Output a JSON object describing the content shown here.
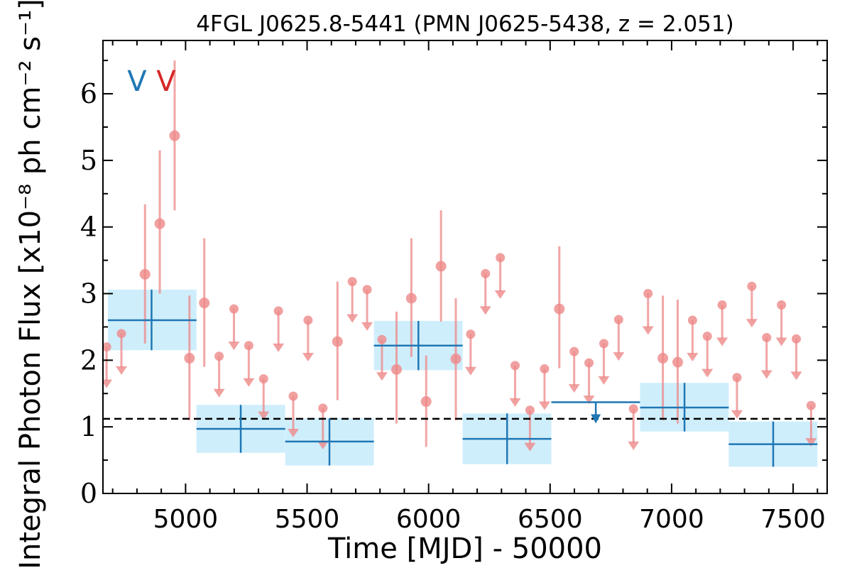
{
  "chart_data": {
    "type": "scatter",
    "title": "4FGL J0625.8-5441 (PMN J0625-5438, z = 2.051)",
    "xlabel": "Time [MJD] - 50000",
    "ylabel": "Integral Photon Flux [x10⁻⁸ ph cm⁻² s⁻¹]",
    "xlim": [
      4660,
      7640
    ],
    "ylim": [
      0,
      6.8
    ],
    "xticks": [
      5000,
      5500,
      6000,
      6500,
      7000,
      7500
    ],
    "yticks": [
      0,
      1,
      2,
      3,
      4,
      5,
      6
    ],
    "grid": false,
    "dashed_line": 1.12,
    "markers": [
      {
        "label": "V",
        "x": 4800,
        "color": "#1f77b4"
      },
      {
        "label": "V",
        "x": 4920,
        "color": "#d62728"
      }
    ],
    "colors": {
      "long_bins": "#1f77b4",
      "long_bin_band": "#cfeefc",
      "short_bins": "#ee8888",
      "dashed_line": "#000000"
    },
    "series": [
      {
        "type": "binned_errorbar",
        "color": "#1f77b4",
        "points": [
          {
            "x": 4860,
            "xlo": 4680,
            "xhi": 5045,
            "y": 2.6,
            "ylo": 2.15,
            "yhi": 3.06
          },
          {
            "x": 5227,
            "xlo": 5045,
            "xhi": 5410,
            "y": 0.97,
            "ylo": 0.61,
            "yhi": 1.33
          },
          {
            "x": 5592,
            "xlo": 5410,
            "xhi": 5775,
            "y": 0.78,
            "ylo": 0.42,
            "yhi": 1.13
          },
          {
            "x": 5958,
            "xlo": 5775,
            "xhi": 6140,
            "y": 2.22,
            "ylo": 1.85,
            "yhi": 2.59
          },
          {
            "x": 6323,
            "xlo": 6140,
            "xhi": 6505,
            "y": 0.82,
            "ylo": 0.44,
            "yhi": 1.2
          },
          {
            "x": 7053,
            "xlo": 6870,
            "xhi": 7235,
            "y": 1.29,
            "ylo": 0.93,
            "yhi": 1.66
          },
          {
            "x": 7418,
            "xlo": 7235,
            "xhi": 7600,
            "y": 0.74,
            "ylo": 0.4,
            "yhi": 1.08
          }
        ],
        "upper_limits": [
          {
            "x": 6688,
            "xlo": 6505,
            "xhi": 6870,
            "y": 1.37
          }
        ]
      },
      {
        "type": "errorbar",
        "color": "#ee8888",
        "points": [
          {
            "x": 4833,
            "y": 3.29,
            "ylo": 2.25,
            "yhi": 4.34
          },
          {
            "x": 4894,
            "y": 4.05,
            "ylo": 3.0,
            "yhi": 5.15
          },
          {
            "x": 4955,
            "y": 5.37,
            "ylo": 4.25,
            "yhi": 6.5
          },
          {
            "x": 5016,
            "y": 2.03,
            "ylo": 1.1,
            "yhi": 2.97
          },
          {
            "x": 5077,
            "y": 2.86,
            "ylo": 1.9,
            "yhi": 3.83
          },
          {
            "x": 5625,
            "y": 2.28,
            "ylo": 1.4,
            "yhi": 3.18
          },
          {
            "x": 5868,
            "y": 1.86,
            "ylo": 1.05,
            "yhi": 2.73
          },
          {
            "x": 5929,
            "y": 2.93,
            "ylo": 2.05,
            "yhi": 3.83
          },
          {
            "x": 5990,
            "y": 1.38,
            "ylo": 0.7,
            "yhi": 2.07
          },
          {
            "x": 6051,
            "y": 3.41,
            "ylo": 2.58,
            "yhi": 4.25
          },
          {
            "x": 6112,
            "y": 2.02,
            "ylo": 1.1,
            "yhi": 2.93
          },
          {
            "x": 6538,
            "y": 2.77,
            "ylo": 1.88,
            "yhi": 3.71
          },
          {
            "x": 6964,
            "y": 2.03,
            "ylo": 1.1,
            "yhi": 2.97
          },
          {
            "x": 7025,
            "y": 1.97,
            "ylo": 1.05,
            "yhi": 2.91
          }
        ],
        "upper_limits": [
          {
            "x": 4675,
            "y": 2.2
          },
          {
            "x": 4736,
            "y": 2.4
          },
          {
            "x": 5138,
            "y": 2.06
          },
          {
            "x": 5199,
            "y": 2.77
          },
          {
            "x": 5260,
            "y": 2.22
          },
          {
            "x": 5321,
            "y": 1.72
          },
          {
            "x": 5382,
            "y": 2.74
          },
          {
            "x": 5443,
            "y": 1.46
          },
          {
            "x": 5504,
            "y": 2.6
          },
          {
            "x": 5565,
            "y": 1.28
          },
          {
            "x": 5686,
            "y": 3.18
          },
          {
            "x": 5747,
            "y": 3.06
          },
          {
            "x": 5808,
            "y": 2.31
          },
          {
            "x": 6173,
            "y": 2.39
          },
          {
            "x": 6234,
            "y": 3.3
          },
          {
            "x": 6295,
            "y": 3.54
          },
          {
            "x": 6356,
            "y": 1.92
          },
          {
            "x": 6417,
            "y": 1.25
          },
          {
            "x": 6477,
            "y": 1.87
          },
          {
            "x": 6599,
            "y": 2.13
          },
          {
            "x": 6660,
            "y": 1.96
          },
          {
            "x": 6721,
            "y": 2.25
          },
          {
            "x": 6782,
            "y": 2.61
          },
          {
            "x": 6843,
            "y": 1.27
          },
          {
            "x": 6903,
            "y": 3.0
          },
          {
            "x": 7086,
            "y": 2.6
          },
          {
            "x": 7147,
            "y": 2.36
          },
          {
            "x": 7208,
            "y": 2.83
          },
          {
            "x": 7269,
            "y": 1.74
          },
          {
            "x": 7330,
            "y": 3.11
          },
          {
            "x": 7391,
            "y": 2.34
          },
          {
            "x": 7452,
            "y": 2.83
          },
          {
            "x": 7513,
            "y": 2.32
          },
          {
            "x": 7574,
            "y": 1.32
          }
        ]
      }
    ]
  }
}
